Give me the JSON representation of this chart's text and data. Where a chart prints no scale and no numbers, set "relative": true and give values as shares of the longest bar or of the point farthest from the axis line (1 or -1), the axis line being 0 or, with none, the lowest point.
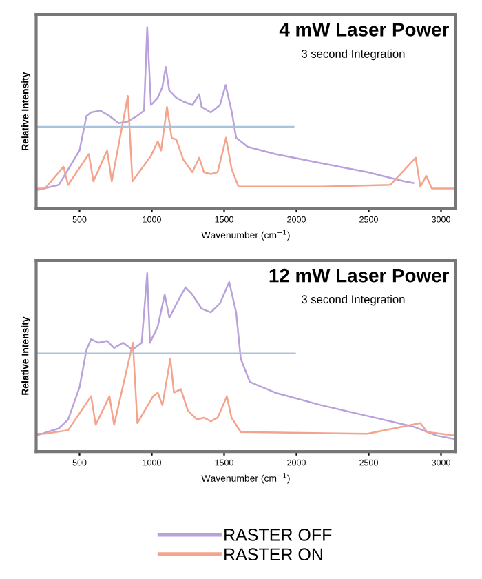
{
  "chart_data": [
    {
      "type": "line",
      "title": "4 mW Laser Power",
      "subtitle": "3 second Integration",
      "xlabel": "Wavenumber (cm$^{−1}$)",
      "ylabel": "Relative Intensity",
      "relative": true,
      "xlim": [
        200,
        3100
      ],
      "xticks": [
        500,
        1000,
        1500,
        2000,
        2500,
        3000
      ],
      "grid": false,
      "legend": false,
      "series": [
        {
          "color": "#b9a2dc",
          "x": [
            200,
            357,
            500,
            548,
            580,
            643,
            707,
            771,
            834,
            898,
            946,
            968,
            994,
            1041,
            1073,
            1096,
            1121,
            1169,
            1217,
            1280,
            1328,
            1344,
            1408,
            1471,
            1510,
            1551,
            1583,
            1663,
            1854,
            2172,
            2491,
            2745,
            2809
          ],
          "values": [
            0.1,
            0.13,
            0.32,
            0.51,
            0.53,
            0.54,
            0.51,
            0.47,
            0.48,
            0.51,
            0.54,
            1.0,
            0.57,
            0.61,
            0.67,
            0.78,
            0.65,
            0.61,
            0.59,
            0.57,
            0.63,
            0.56,
            0.53,
            0.57,
            0.68,
            0.54,
            0.39,
            0.34,
            0.3,
            0.25,
            0.2,
            0.15,
            0.14
          ]
        },
        {
          "color": "#f5a38c",
          "x": [
            200,
            261,
            389,
            421,
            564,
            596,
            691,
            723,
            834,
            866,
            994,
            1041,
            1064,
            1105,
            1137,
            1169,
            1217,
            1280,
            1328,
            1360,
            1408,
            1455,
            1513,
            1551,
            1599,
            2172,
            2650,
            2825,
            2857,
            2898,
            2936,
            3100
          ],
          "values": [
            0.11,
            0.11,
            0.23,
            0.13,
            0.3,
            0.15,
            0.32,
            0.15,
            0.62,
            0.15,
            0.29,
            0.37,
            0.32,
            0.56,
            0.39,
            0.38,
            0.27,
            0.2,
            0.28,
            0.2,
            0.19,
            0.2,
            0.39,
            0.22,
            0.12,
            0.12,
            0.13,
            0.28,
            0.12,
            0.18,
            0.11,
            0.11
          ]
        },
        {
          "color": "#a9c3dc",
          "x": [
            200,
            1980
          ],
          "values": [
            0.45,
            0.45
          ]
        }
      ]
    },
    {
      "type": "line",
      "title": "12 mW Laser Power",
      "subtitle": "3 second Integration",
      "xlabel": "Wavenumber (cm$^{−1}$)",
      "ylabel": "Relative Intensity",
      "relative": true,
      "xlim": [
        200,
        3100
      ],
      "xticks": [
        500,
        1000,
        1500,
        2000,
        2500,
        3000
      ],
      "grid": false,
      "legend": "bottom",
      "series": [
        {
          "name": "RASTER OFF",
          "color": "#b9a2dc",
          "x": [
            200,
            357,
            421,
            500,
            548,
            580,
            628,
            691,
            739,
            802,
            866,
            930,
            968,
            987,
            1041,
            1089,
            1121,
            1185,
            1233,
            1280,
            1344,
            1408,
            1471,
            1535,
            1583,
            1615,
            1678,
            1854,
            2172,
            2491,
            2809,
            2968,
            3095
          ],
          "values": [
            0.09,
            0.13,
            0.18,
            0.36,
            0.57,
            0.63,
            0.61,
            0.62,
            0.58,
            0.61,
            0.57,
            0.61,
            1.0,
            0.61,
            0.7,
            0.88,
            0.75,
            0.85,
            0.92,
            0.88,
            0.8,
            0.78,
            0.83,
            0.95,
            0.78,
            0.52,
            0.39,
            0.33,
            0.26,
            0.2,
            0.14,
            0.09,
            0.07
          ]
        },
        {
          "name": "RASTER ON",
          "color": "#f5a38c",
          "x": [
            200,
            261,
            421,
            580,
            612,
            707,
            739,
            869,
            900,
            1009,
            1041,
            1073,
            1128,
            1153,
            1201,
            1249,
            1312,
            1360,
            1408,
            1455,
            1519,
            1551,
            1615,
            2491,
            2857,
            2904,
            3100
          ],
          "values": [
            0.1,
            0.1,
            0.12,
            0.31,
            0.15,
            0.31,
            0.15,
            0.61,
            0.16,
            0.31,
            0.33,
            0.26,
            0.52,
            0.33,
            0.35,
            0.23,
            0.18,
            0.19,
            0.17,
            0.19,
            0.31,
            0.19,
            0.11,
            0.1,
            0.16,
            0.11,
            0.09
          ]
        },
        {
          "color": "#a9c3dc",
          "x": [
            200,
            1990
          ],
          "values": [
            0.55,
            0.55
          ]
        }
      ]
    }
  ]
}
